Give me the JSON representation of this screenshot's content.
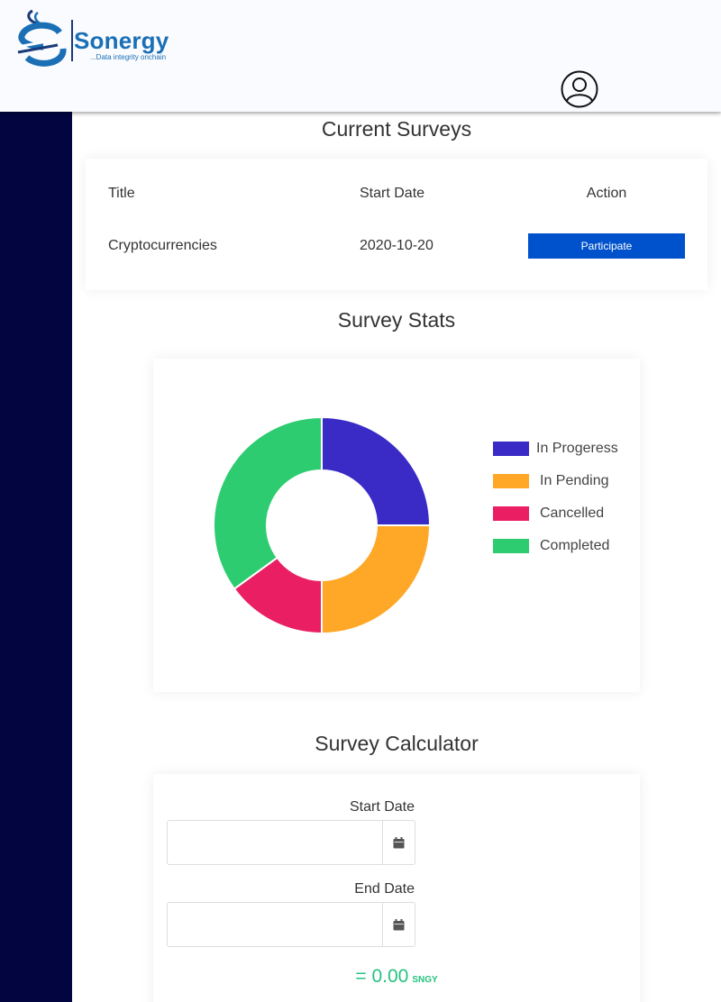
{
  "brand": {
    "name": "Sonergy",
    "tagline": "...Data integrity onchain"
  },
  "surveys": {
    "title": "Current Surveys",
    "columns": [
      "Title",
      "Start Date",
      "Action"
    ],
    "rows": [
      {
        "title": "Cryptocurrencies",
        "start_date": "2020-10-20",
        "action": "Participate"
      }
    ]
  },
  "stats": {
    "title": "Survey Stats"
  },
  "chart_data": {
    "type": "pie",
    "title": "Survey Stats",
    "categories": [
      "In Progeress",
      "In Pending",
      "Cancelled",
      "Completed"
    ],
    "values": [
      25,
      25,
      15,
      35
    ],
    "colors": [
      "#3a2bc6",
      "#ffa726",
      "#e91e63",
      "#2ecc71"
    ],
    "legend": "right"
  },
  "calculator": {
    "title": "Survey Calculator",
    "start_label": "Start Date",
    "end_label": "End Date",
    "start_value": "",
    "end_value": "",
    "result_prefix": "= ",
    "result_value": "0.00",
    "result_unit": "SNGY"
  },
  "icons": {
    "profile": "user-circle-icon",
    "calendar": "calendar-icon"
  },
  "colors": {
    "sidebar": "#020540",
    "primary": "#0052cc",
    "accent": "#26c281"
  }
}
